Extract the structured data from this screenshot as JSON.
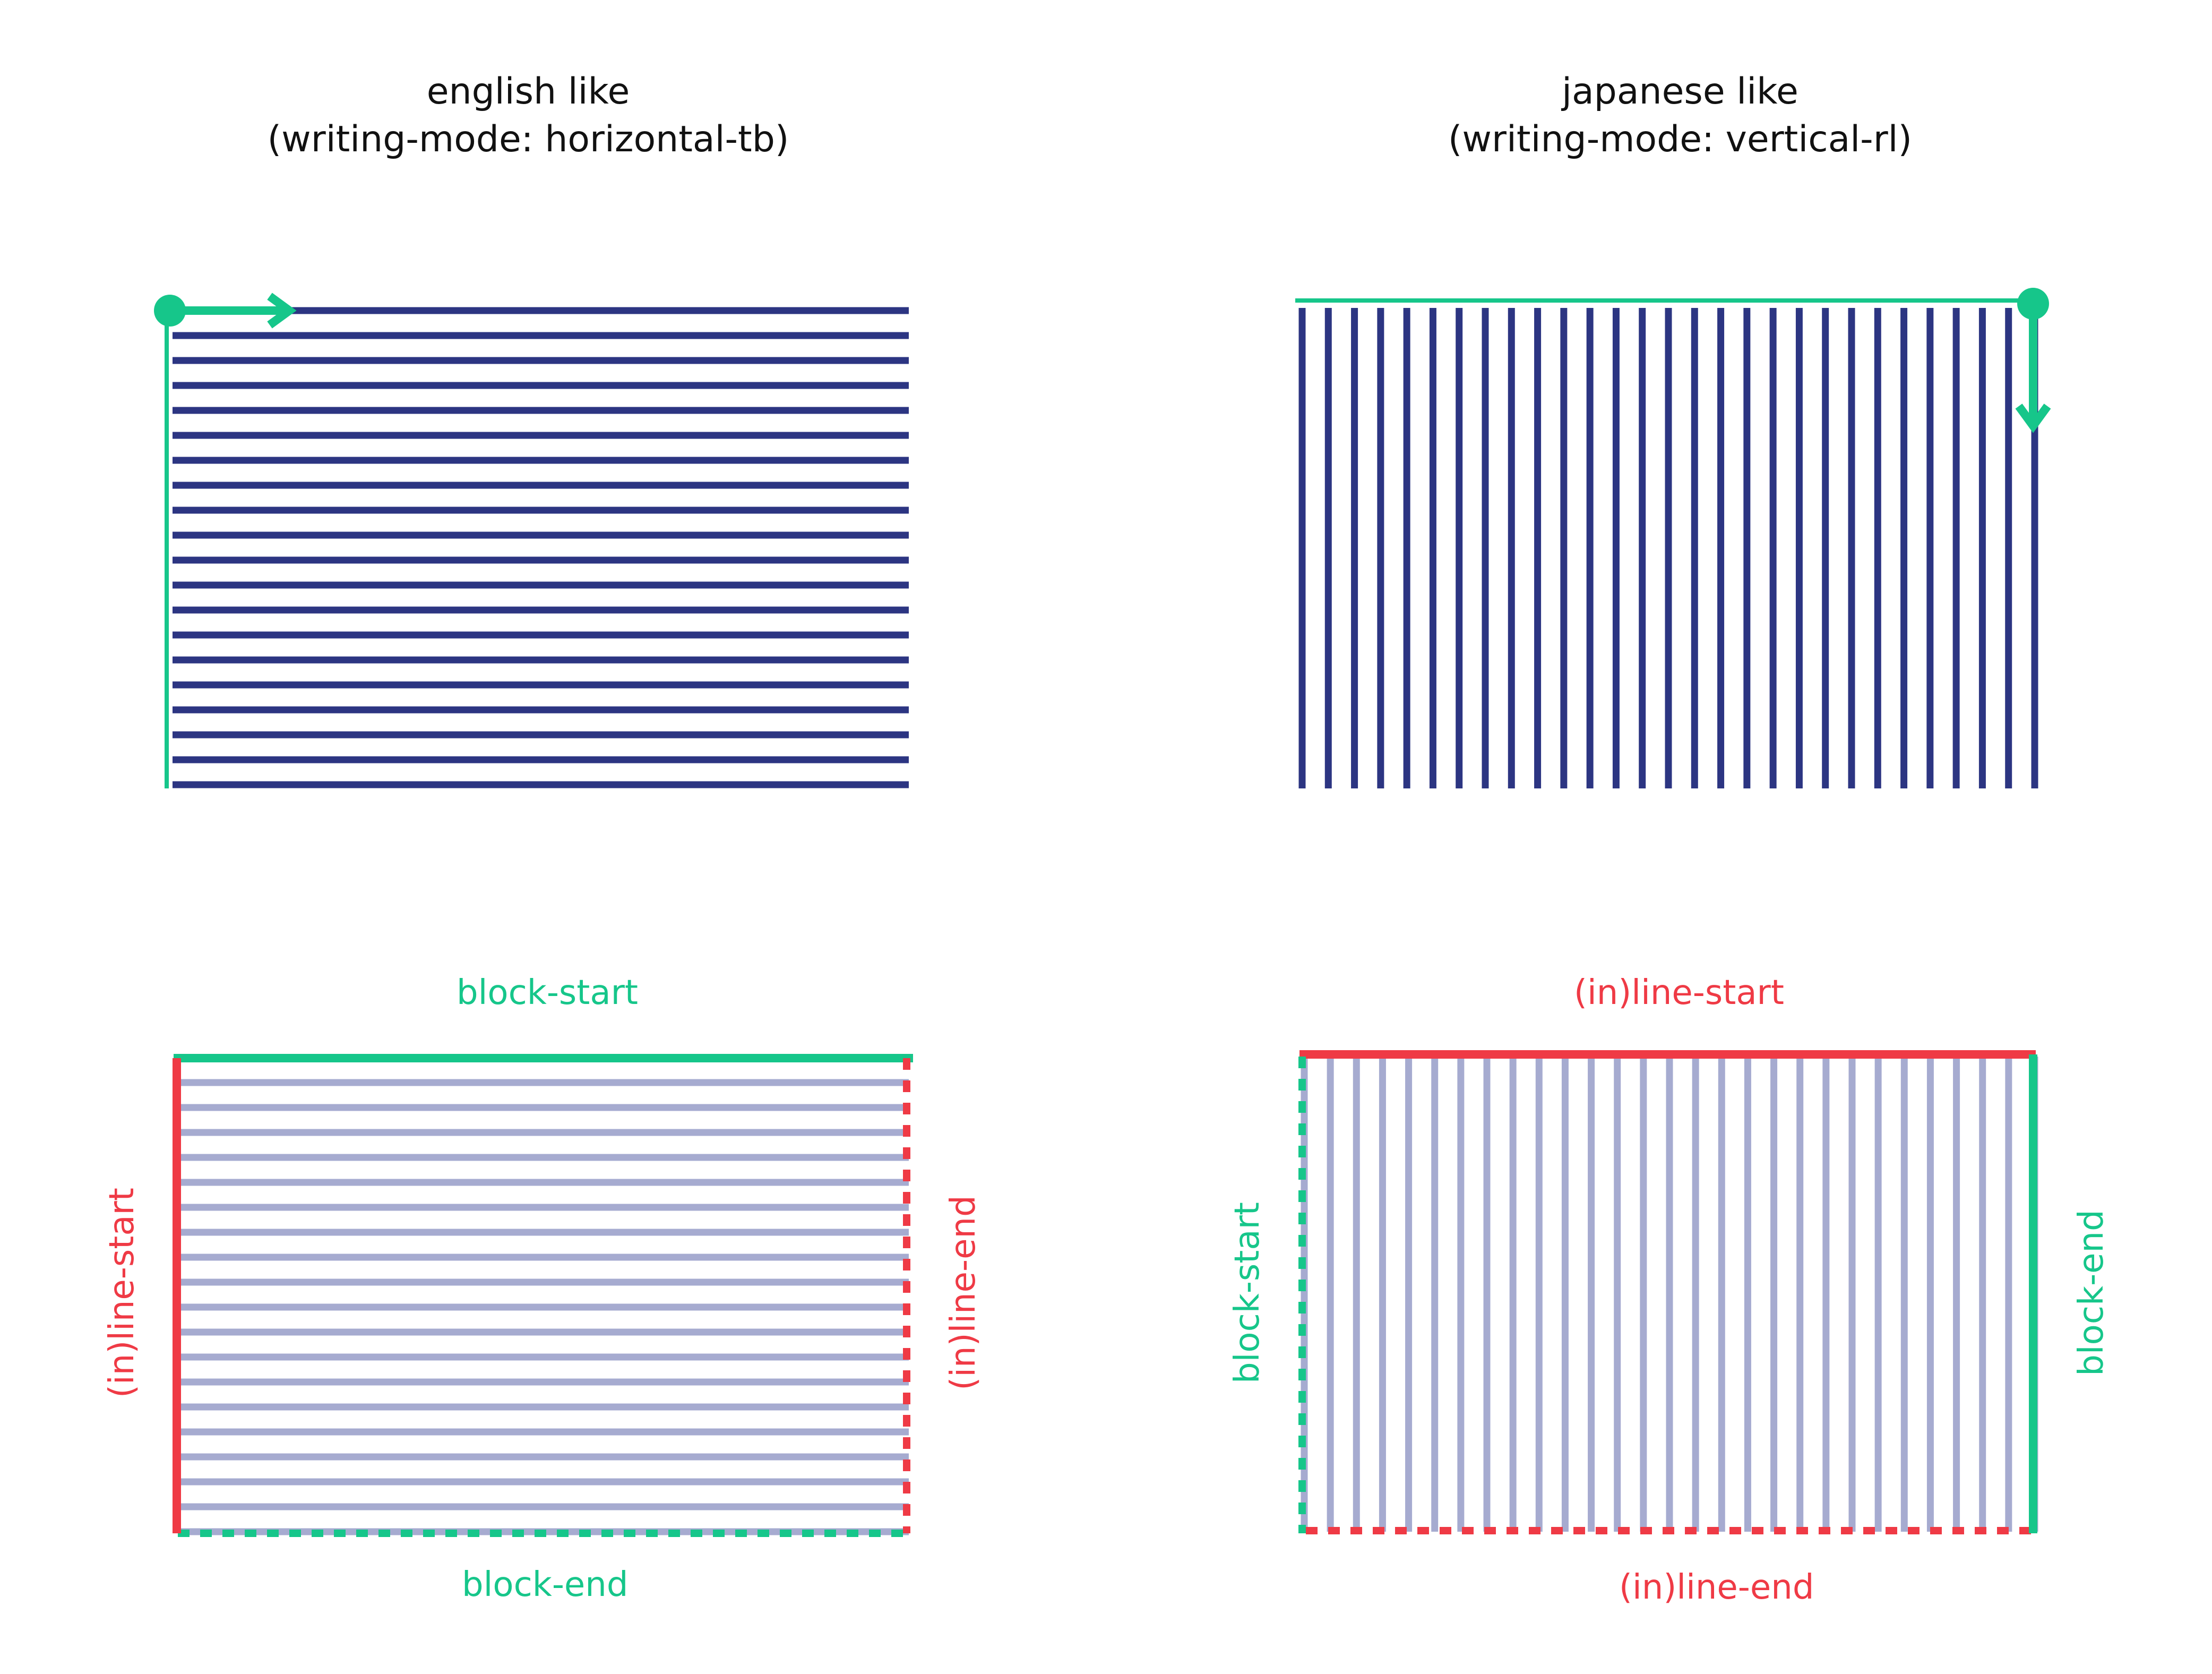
{
  "colors": {
    "navy": "#2c3582",
    "lavender": "#a6abd0",
    "green": "#16c68a",
    "red": "#ef3a45",
    "text": "#111111"
  },
  "english": {
    "title_line1": "english like",
    "title_line2": "(writing-mode: horizontal-tb)",
    "block_start": "block-start",
    "block_end": "block-end",
    "inline_start": "(in)line-start",
    "inline_end": "(in)line-end",
    "line_count": 20
  },
  "japanese": {
    "title_line1": "japanese like",
    "title_line2": "(writing-mode: vertical-rl)",
    "inline_start": "(in)line-start",
    "inline_end": "(in)line-end",
    "block_start": "block-start",
    "block_end": "block-end",
    "line_count": 29
  }
}
